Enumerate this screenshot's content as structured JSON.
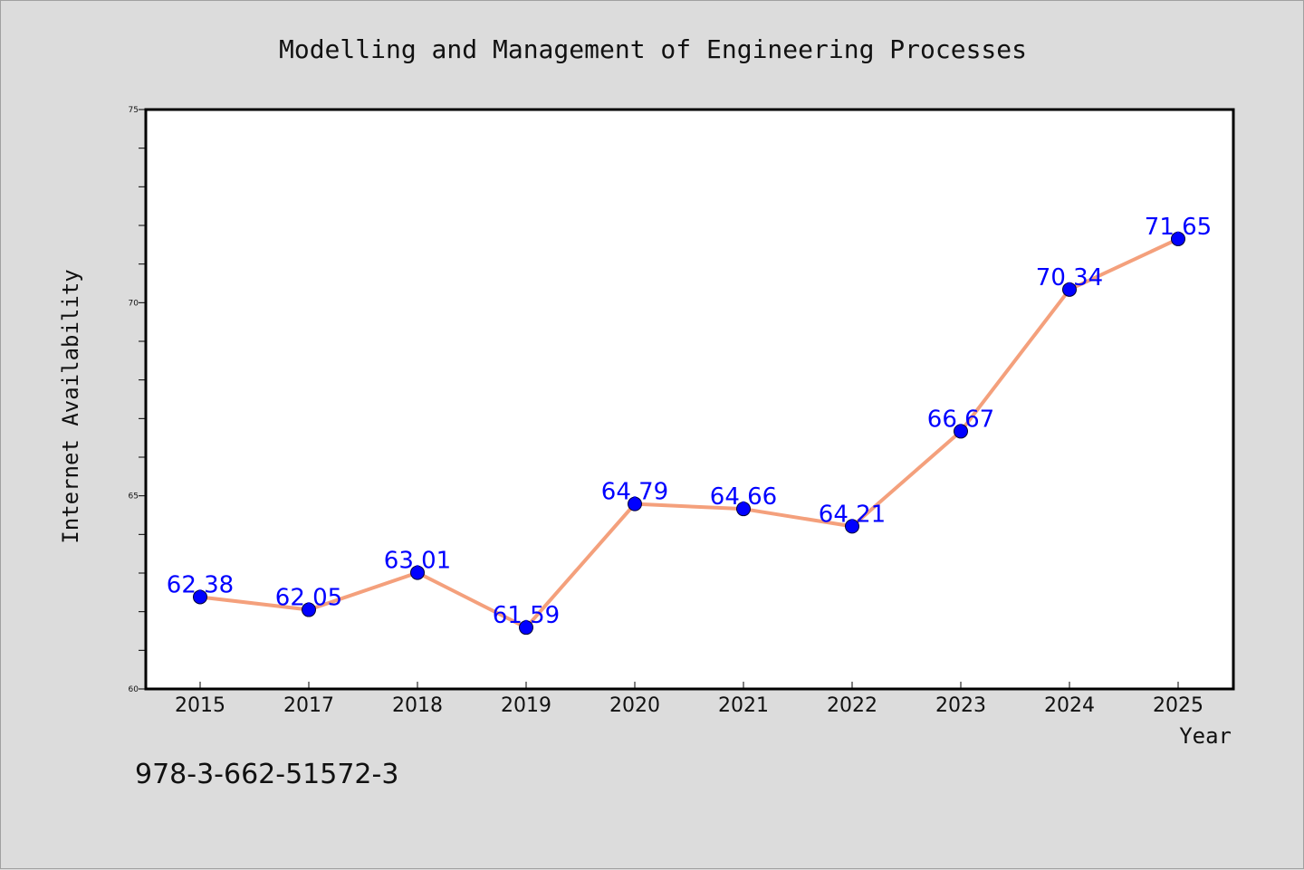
{
  "colors": {
    "background": "#dcdcdc",
    "plot_background": "#ffffff",
    "line": "#f4a07c",
    "marker": "#0000ff",
    "data_label": "#0000ff",
    "text": "#111111"
  },
  "isbn": "978-3-662-51572-3",
  "chart_data": {
    "type": "line",
    "title": "Modelling and Management of Engineering Processes",
    "xlabel": "Year",
    "ylabel": "Internet Availability",
    "categories": [
      "2015",
      "2017",
      "2018",
      "2019",
      "2020",
      "2021",
      "2022",
      "2023",
      "2024",
      "2025"
    ],
    "series": [
      {
        "values": [
          62.38,
          62.05,
          63.01,
          61.59,
          64.79,
          64.66,
          64.21,
          66.67,
          70.34,
          71.65
        ],
        "labels": [
          "62.38",
          "62.05",
          "63.01",
          "61.59",
          "64.79",
          "64.66",
          "64.21",
          "66.67",
          "70.34",
          "71.65"
        ]
      }
    ],
    "ylim": [
      60,
      75
    ],
    "yticks": [
      "60",
      "65",
      "70",
      "75"
    ],
    "y_minor_step": 1,
    "grid": false,
    "legend": "none"
  }
}
